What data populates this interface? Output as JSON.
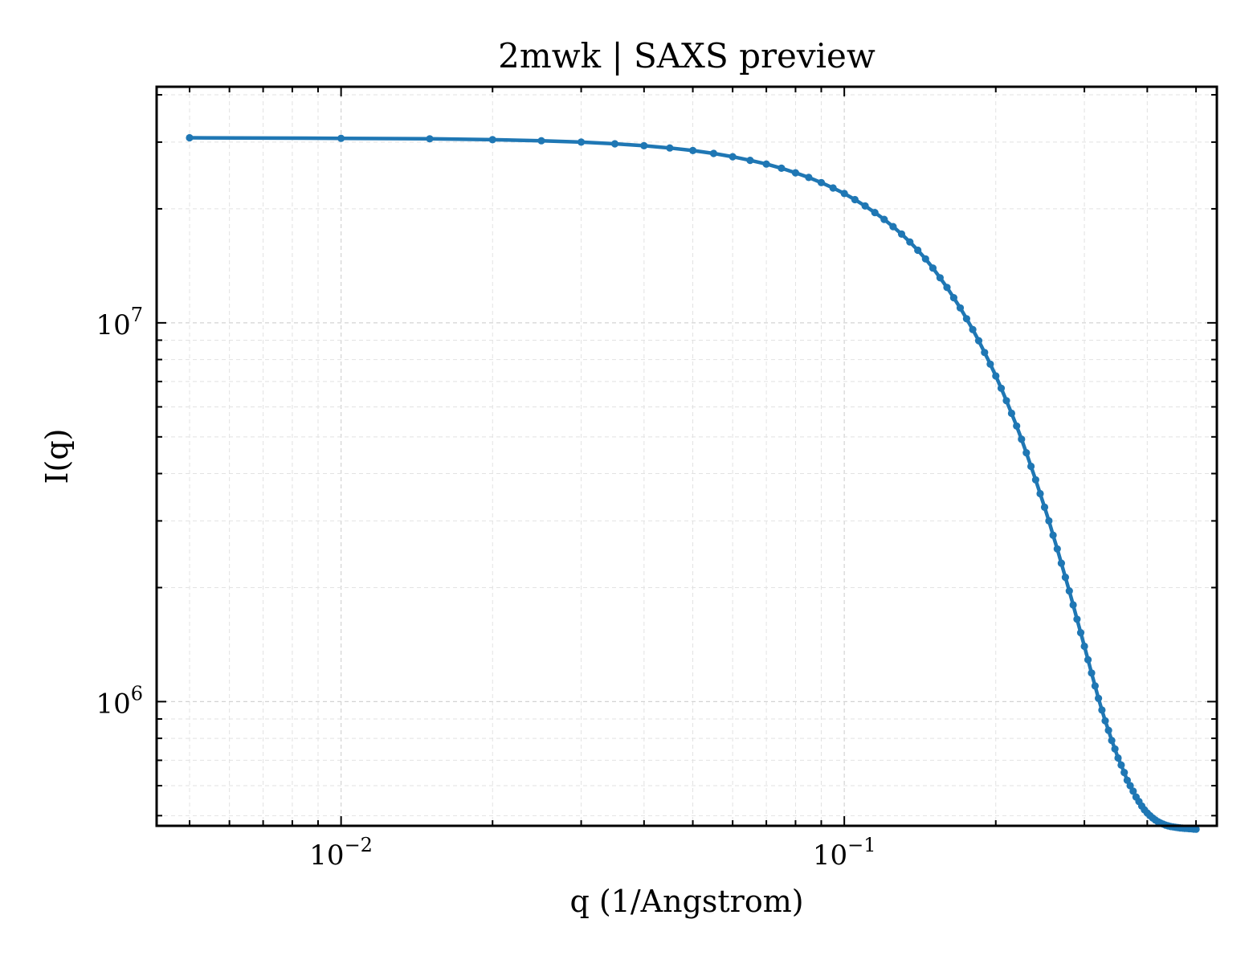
{
  "chart_data": {
    "type": "line",
    "title": "2mwk | SAXS preview",
    "xlabel": "q (1/Angstrom)",
    "ylabel": "I(q)",
    "xscale": "log",
    "yscale": "log",
    "xlim": [
      0.0043,
      0.55
    ],
    "ylim": [
      470000,
      42000000
    ],
    "grid": true,
    "legend": "none",
    "x_ticks": [
      {
        "base": "10",
        "exp": "−2",
        "value": 0.01
      },
      {
        "base": "10",
        "exp": "−1",
        "value": 0.1
      }
    ],
    "y_ticks": [
      {
        "base": "10",
        "exp": "6",
        "value": 1000000
      },
      {
        "base": "10",
        "exp": "7",
        "value": 10000000
      }
    ],
    "series": [
      {
        "color": "#1f77b4",
        "marker": "dot",
        "x": [
          0.005,
          0.01,
          0.015,
          0.02,
          0.025,
          0.03,
          0.035,
          0.04,
          0.045,
          0.05,
          0.055,
          0.06,
          0.065,
          0.07,
          0.075,
          0.08,
          0.085,
          0.09,
          0.095,
          0.1,
          0.105,
          0.11,
          0.115,
          0.12,
          0.125,
          0.13,
          0.135,
          0.14,
          0.145,
          0.15,
          0.155,
          0.16,
          0.165,
          0.17,
          0.175,
          0.18,
          0.185,
          0.19,
          0.195,
          0.2,
          0.205,
          0.21,
          0.215,
          0.22,
          0.225,
          0.23,
          0.235,
          0.24,
          0.245,
          0.25,
          0.255,
          0.26,
          0.265,
          0.27,
          0.275,
          0.28,
          0.285,
          0.29,
          0.295,
          0.3,
          0.305,
          0.31,
          0.315,
          0.32,
          0.325,
          0.33,
          0.335,
          0.34,
          0.345,
          0.35,
          0.355,
          0.36,
          0.365,
          0.37,
          0.375,
          0.38,
          0.385,
          0.39,
          0.395,
          0.4,
          0.405,
          0.41,
          0.415,
          0.42,
          0.425,
          0.43,
          0.435,
          0.44,
          0.445,
          0.45,
          0.455,
          0.46,
          0.465,
          0.47,
          0.475,
          0.48,
          0.485,
          0.49,
          0.495,
          0.5
        ],
        "y": [
          30800000,
          30700000,
          30600000,
          30450000,
          30250000,
          30000000,
          29700000,
          29350000,
          28950000,
          28500000,
          28000000,
          27450000,
          26850000,
          26250000,
          25600000,
          24900000,
          24200000,
          23450000,
          22700000,
          21950000,
          21150000,
          20350000,
          19550000,
          18750000,
          17950000,
          17150000,
          16350000,
          15550000,
          14750000,
          13950000,
          13150000,
          12400000,
          11650000,
          10950000,
          10250000,
          9600000,
          8970000,
          8350000,
          7780000,
          7240000,
          6720000,
          6230000,
          5770000,
          5340000,
          4930000,
          4540000,
          4180000,
          3850000,
          3540000,
          3260000,
          3000000,
          2750000,
          2530000,
          2320000,
          2130000,
          1960000,
          1800000,
          1650000,
          1520000,
          1400000,
          1290000,
          1190000,
          1100000,
          1020000,
          950000,
          890000,
          840000,
          790000,
          750000,
          710000,
          680000,
          650000,
          620000,
          600000,
          580000,
          560000,
          545000,
          530000,
          518000,
          508000,
          500000,
          493000,
          487000,
          482000,
          478000,
          475000,
          472000,
          470000,
          468000,
          467000,
          466000,
          465000,
          464000,
          463500,
          463000,
          462500,
          462000,
          461500,
          461000,
          460500
        ]
      }
    ]
  }
}
